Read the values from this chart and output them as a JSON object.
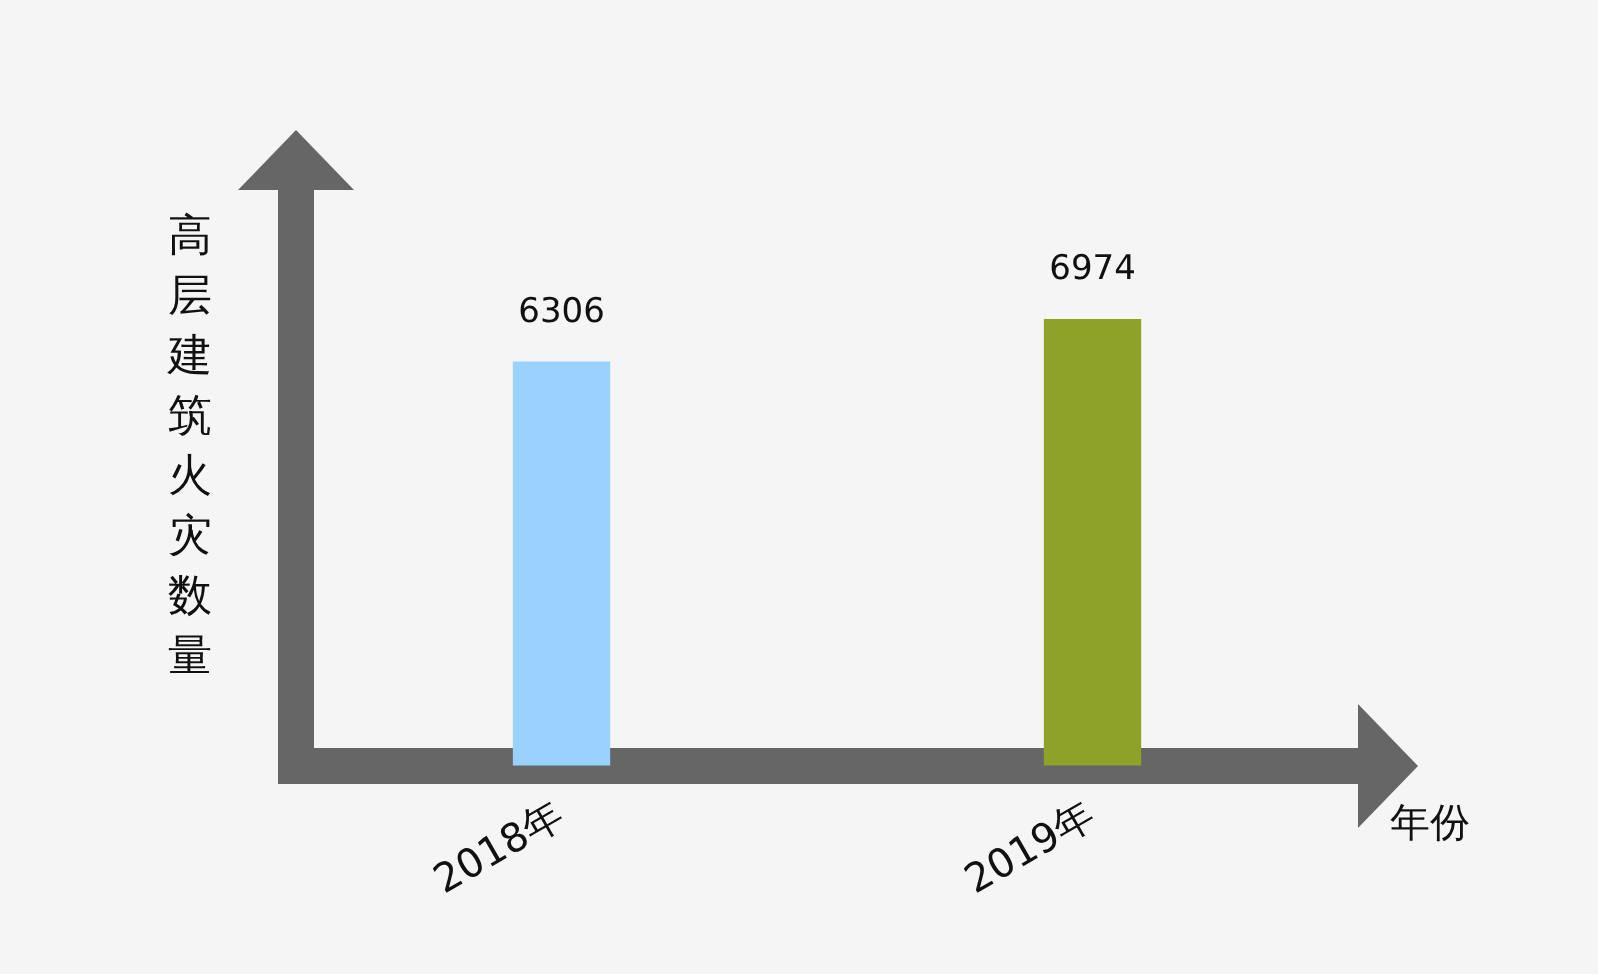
{
  "chart_data": {
    "type": "bar",
    "ylabel": "高层建筑火灾数量",
    "xlabel": "年份",
    "categories": [
      "2018年",
      "2019年"
    ],
    "values": [
      6306,
      6974
    ],
    "colors": [
      "#99d1ff",
      "#8ea22a"
    ],
    "data_labels": true,
    "grid": false,
    "legend": false
  }
}
